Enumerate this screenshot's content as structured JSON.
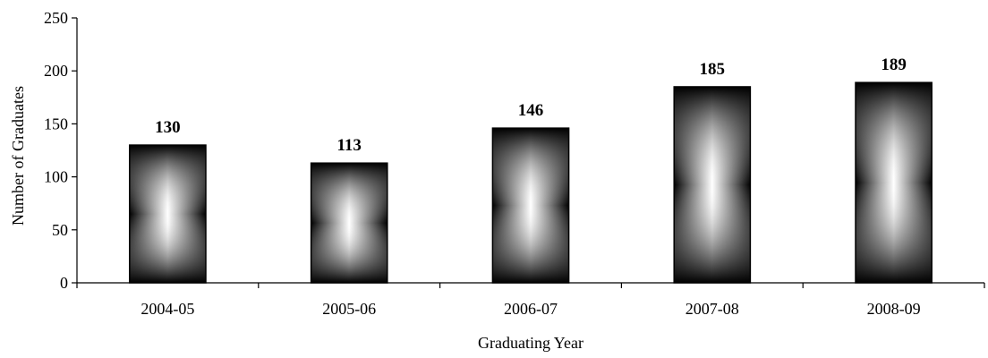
{
  "chart_data": {
    "type": "bar",
    "categories": [
      "2004-05",
      "2005-06",
      "2006-07",
      "2007-08",
      "2008-09"
    ],
    "values": [
      130,
      113,
      146,
      185,
      189
    ],
    "data_labels": [
      "130",
      "113",
      "146",
      "185",
      "189"
    ],
    "title": "",
    "xlabel": "Graduating Year",
    "ylabel": "Number of Graduates",
    "ylim": [
      0,
      250
    ],
    "yticks": [
      0,
      50,
      100,
      150,
      200,
      250
    ],
    "ytick_labels": [
      "0",
      "50",
      "100",
      "150",
      "200",
      "250"
    ],
    "grid": false,
    "legend": "none",
    "bar_style": "black-white-black gradient"
  }
}
